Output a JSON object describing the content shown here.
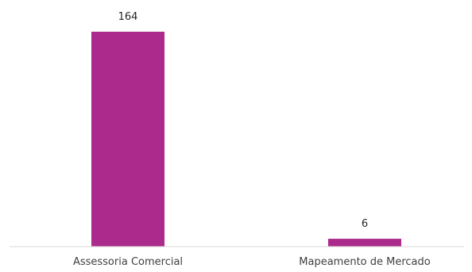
{
  "chart_data": {
    "type": "bar",
    "title": "",
    "xlabel": "",
    "ylabel": "",
    "categories": [
      "Assessoria Comercial",
      "Mapeamento de Mercado"
    ],
    "values": [
      164,
      6
    ],
    "data_labels": [
      "164",
      "6"
    ],
    "ylim": [
      0,
      164
    ],
    "grid": false,
    "legend": "none",
    "bar_color": "#AB2A8C"
  }
}
